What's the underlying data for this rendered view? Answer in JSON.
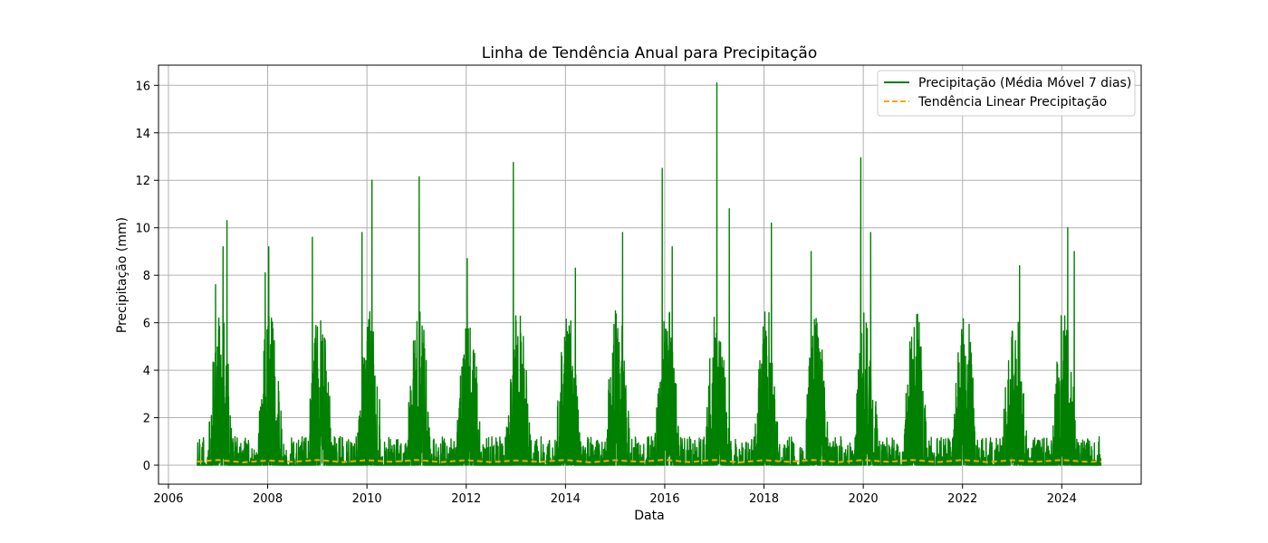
{
  "chart_data": {
    "type": "line",
    "title": "Linha de Tendência Anual para Precipitação",
    "xlabel": "Data",
    "ylabel": "Precipitação (mm)",
    "xlim": [
      2005.8,
      2025.6
    ],
    "ylim": [
      -0.8,
      16.85
    ],
    "x_ticks": [
      2006,
      2008,
      2010,
      2012,
      2014,
      2016,
      2018,
      2020,
      2022,
      2024
    ],
    "x_tick_labels": [
      "2006",
      "2008",
      "2010",
      "2012",
      "2014",
      "2016",
      "2018",
      "2020",
      "2022",
      "2024"
    ],
    "y_ticks": [
      0,
      2,
      4,
      6,
      8,
      10,
      12,
      14,
      16
    ],
    "y_tick_labels": [
      "0",
      "2",
      "4",
      "6",
      "8",
      "10",
      "12",
      "14",
      "16"
    ],
    "grid": true,
    "legend_position": "top-right",
    "series": [
      {
        "name": "Precipitação (Média Móvel 7 dias)",
        "color": "#008000",
        "style": "solid",
        "x_range": [
          2006.58,
          2024.8
        ],
        "notable_peaks": [
          {
            "x": 2006.95,
            "y": 7.6
          },
          {
            "x": 2007.1,
            "y": 9.2
          },
          {
            "x": 2007.18,
            "y": 10.3
          },
          {
            "x": 2007.95,
            "y": 8.1
          },
          {
            "x": 2008.02,
            "y": 9.2
          },
          {
            "x": 2008.9,
            "y": 9.6
          },
          {
            "x": 2009.9,
            "y": 9.8
          },
          {
            "x": 2010.1,
            "y": 12.0
          },
          {
            "x": 2011.05,
            "y": 12.15
          },
          {
            "x": 2012.02,
            "y": 8.7
          },
          {
            "x": 2012.95,
            "y": 12.75
          },
          {
            "x": 2014.2,
            "y": 8.3
          },
          {
            "x": 2015.15,
            "y": 9.8
          },
          {
            "x": 2015.95,
            "y": 12.5
          },
          {
            "x": 2016.15,
            "y": 9.2
          },
          {
            "x": 2017.05,
            "y": 16.1
          },
          {
            "x": 2017.3,
            "y": 10.8
          },
          {
            "x": 2018.15,
            "y": 10.2
          },
          {
            "x": 2018.95,
            "y": 9.0
          },
          {
            "x": 2019.95,
            "y": 12.95
          },
          {
            "x": 2020.15,
            "y": 9.8
          },
          {
            "x": 2023.15,
            "y": 8.4
          },
          {
            "x": 2024.12,
            "y": 10.0
          },
          {
            "x": 2024.25,
            "y": 9.0
          }
        ]
      },
      {
        "name": "Tendência Linear Precipitação",
        "color": "#FFA500",
        "style": "dashed",
        "x": [
          2006.58,
          2007.0,
          2007.5,
          2008.0,
          2008.5,
          2009.0,
          2009.5,
          2010.0,
          2010.5,
          2011.0,
          2011.5,
          2012.0,
          2012.5,
          2013.0,
          2013.5,
          2014.0,
          2014.5,
          2015.0,
          2015.5,
          2016.0,
          2016.5,
          2017.0,
          2017.5,
          2018.0,
          2018.5,
          2019.0,
          2019.5,
          2020.0,
          2020.5,
          2021.0,
          2021.5,
          2022.0,
          2022.5,
          2023.0,
          2023.5,
          2024.0,
          2024.5,
          2024.8
        ],
        "y": [
          0.15,
          0.22,
          0.12,
          0.2,
          0.14,
          0.22,
          0.13,
          0.21,
          0.14,
          0.22,
          0.13,
          0.21,
          0.13,
          0.2,
          0.14,
          0.22,
          0.12,
          0.21,
          0.14,
          0.23,
          0.13,
          0.22,
          0.12,
          0.21,
          0.14,
          0.22,
          0.13,
          0.22,
          0.14,
          0.22,
          0.13,
          0.22,
          0.13,
          0.21,
          0.14,
          0.22,
          0.14,
          0.15
        ]
      }
    ]
  }
}
